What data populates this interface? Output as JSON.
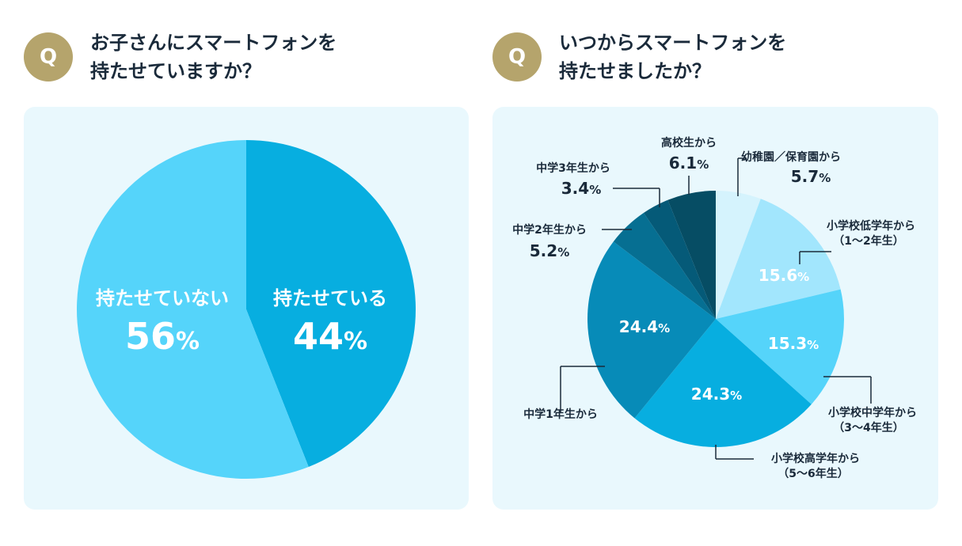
{
  "left_question": {
    "badge": "Q",
    "line1": "お子さんにスマートフォンを",
    "line2": "持たせていますか？"
  },
  "right_question": {
    "badge": "Q",
    "line1": "いつからスマートフォンを",
    "line2": "持たせましたか？"
  },
  "chart_data": [
    {
      "type": "pie",
      "categories": [
        "持たせている",
        "持たせていない"
      ],
      "values": [
        44,
        56
      ],
      "unit": "%",
      "colors": [
        "#07aee0",
        "#55d4fa"
      ]
    },
    {
      "type": "pie",
      "categories": [
        "幼稚園／保育園から",
        "小学校低学年から（1〜2年生）",
        "小学校中学年から（3〜4年生）",
        "小学校高学年から（5〜6年生）",
        "中学1年生から",
        "中学2年生から",
        "中学3年生から",
        "高校生から"
      ],
      "labels": [
        [
          "幼稚園／保育園から"
        ],
        [
          "小学校低学年から",
          "（1〜2年生）"
        ],
        [
          "小学校中学年から",
          "（3〜4年生）"
        ],
        [
          "小学校高学年から",
          "（5〜6年生）"
        ],
        [
          "中学1年生から"
        ],
        [
          "中学2年生から"
        ],
        [
          "中学3年生から"
        ],
        [
          "高校生から"
        ]
      ],
      "values": [
        5.7,
        15.6,
        15.3,
        24.3,
        24.4,
        5.2,
        3.4,
        6.1
      ],
      "value_labels": [
        "5.7",
        "15.6",
        "15.3",
        "24.3",
        "24.4",
        "5.2",
        "3.4",
        "6.1"
      ],
      "unit": "%",
      "colors": [
        "#d5f3fd",
        "#a2e6fd",
        "#55d4fa",
        "#07aee0",
        "#078bb8",
        "#066f92",
        "#055a78",
        "#064d64"
      ]
    }
  ]
}
